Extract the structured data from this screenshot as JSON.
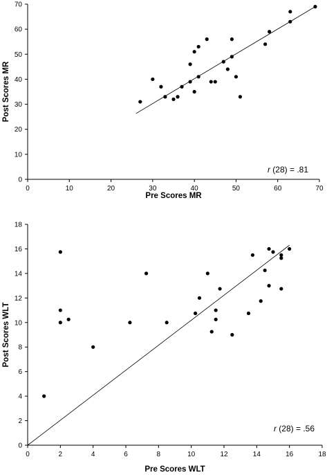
{
  "chart_data": [
    {
      "type": "scatter",
      "title": "",
      "xlabel": "Pre Scores MR",
      "ylabel": "Post Scores MR",
      "xlim": [
        0,
        70
      ],
      "ylim": [
        0,
        70
      ],
      "xticks": [
        0,
        10,
        20,
        30,
        40,
        50,
        60,
        70
      ],
      "yticks": [
        0,
        10,
        20,
        30,
        40,
        50,
        60,
        70
      ],
      "grid": false,
      "annotation": {
        "italic": "r",
        "text": " (28) = .81"
      },
      "trendline": {
        "x": [
          26,
          69
        ],
        "y": [
          26.3,
          69
        ]
      },
      "points": [
        {
          "x": 27,
          "y": 31
        },
        {
          "x": 30,
          "y": 40
        },
        {
          "x": 32,
          "y": 37
        },
        {
          "x": 33,
          "y": 33
        },
        {
          "x": 35,
          "y": 32
        },
        {
          "x": 36,
          "y": 33
        },
        {
          "x": 37,
          "y": 37
        },
        {
          "x": 39,
          "y": 39
        },
        {
          "x": 39,
          "y": 46
        },
        {
          "x": 40,
          "y": 35
        },
        {
          "x": 40,
          "y": 51
        },
        {
          "x": 41,
          "y": 41
        },
        {
          "x": 41,
          "y": 53
        },
        {
          "x": 43,
          "y": 56
        },
        {
          "x": 44,
          "y": 39
        },
        {
          "x": 45,
          "y": 39
        },
        {
          "x": 47,
          "y": 47
        },
        {
          "x": 48,
          "y": 44
        },
        {
          "x": 49,
          "y": 49
        },
        {
          "x": 49,
          "y": 56
        },
        {
          "x": 50,
          "y": 41
        },
        {
          "x": 51,
          "y": 33
        },
        {
          "x": 57,
          "y": 54
        },
        {
          "x": 58,
          "y": 59
        },
        {
          "x": 63,
          "y": 63
        },
        {
          "x": 63,
          "y": 67
        },
        {
          "x": 69,
          "y": 69
        }
      ]
    },
    {
      "type": "scatter",
      "title": "",
      "xlabel": "Pre Scores WLT",
      "ylabel": "Post Scores WLT",
      "xlim": [
        0,
        18
      ],
      "ylim": [
        0,
        18
      ],
      "xticks": [
        0,
        2,
        4,
        6,
        8,
        10,
        12,
        14,
        16,
        18
      ],
      "yticks": [
        0,
        2,
        4,
        6,
        8,
        10,
        12,
        14,
        16,
        18
      ],
      "grid": false,
      "annotation": {
        "italic": "r",
        "text": " (28) = .56"
      },
      "trendline": {
        "x": [
          0,
          16
        ],
        "y": [
          0,
          16.3
        ]
      },
      "points": [
        {
          "x": 1,
          "y": 4
        },
        {
          "x": 2,
          "y": 10
        },
        {
          "x": 2,
          "y": 11
        },
        {
          "x": 2,
          "y": 15.75
        },
        {
          "x": 2.5,
          "y": 10.25
        },
        {
          "x": 4,
          "y": 8
        },
        {
          "x": 6.25,
          "y": 10
        },
        {
          "x": 7.25,
          "y": 14
        },
        {
          "x": 8.5,
          "y": 10
        },
        {
          "x": 10.25,
          "y": 10.75
        },
        {
          "x": 10.5,
          "y": 12
        },
        {
          "x": 11,
          "y": 14
        },
        {
          "x": 11.25,
          "y": 9.25
        },
        {
          "x": 11.5,
          "y": 10.25
        },
        {
          "x": 11.5,
          "y": 11
        },
        {
          "x": 11.75,
          "y": 12.75
        },
        {
          "x": 12.5,
          "y": 9
        },
        {
          "x": 13.5,
          "y": 10.75
        },
        {
          "x": 13.75,
          "y": 15.5
        },
        {
          "x": 14.25,
          "y": 11.75
        },
        {
          "x": 14.5,
          "y": 14.25
        },
        {
          "x": 14.75,
          "y": 13
        },
        {
          "x": 14.75,
          "y": 16
        },
        {
          "x": 15,
          "y": 15.75
        },
        {
          "x": 15.5,
          "y": 12.75
        },
        {
          "x": 15.5,
          "y": 15.25
        },
        {
          "x": 15.5,
          "y": 15.5
        },
        {
          "x": 16,
          "y": 16
        }
      ]
    }
  ]
}
